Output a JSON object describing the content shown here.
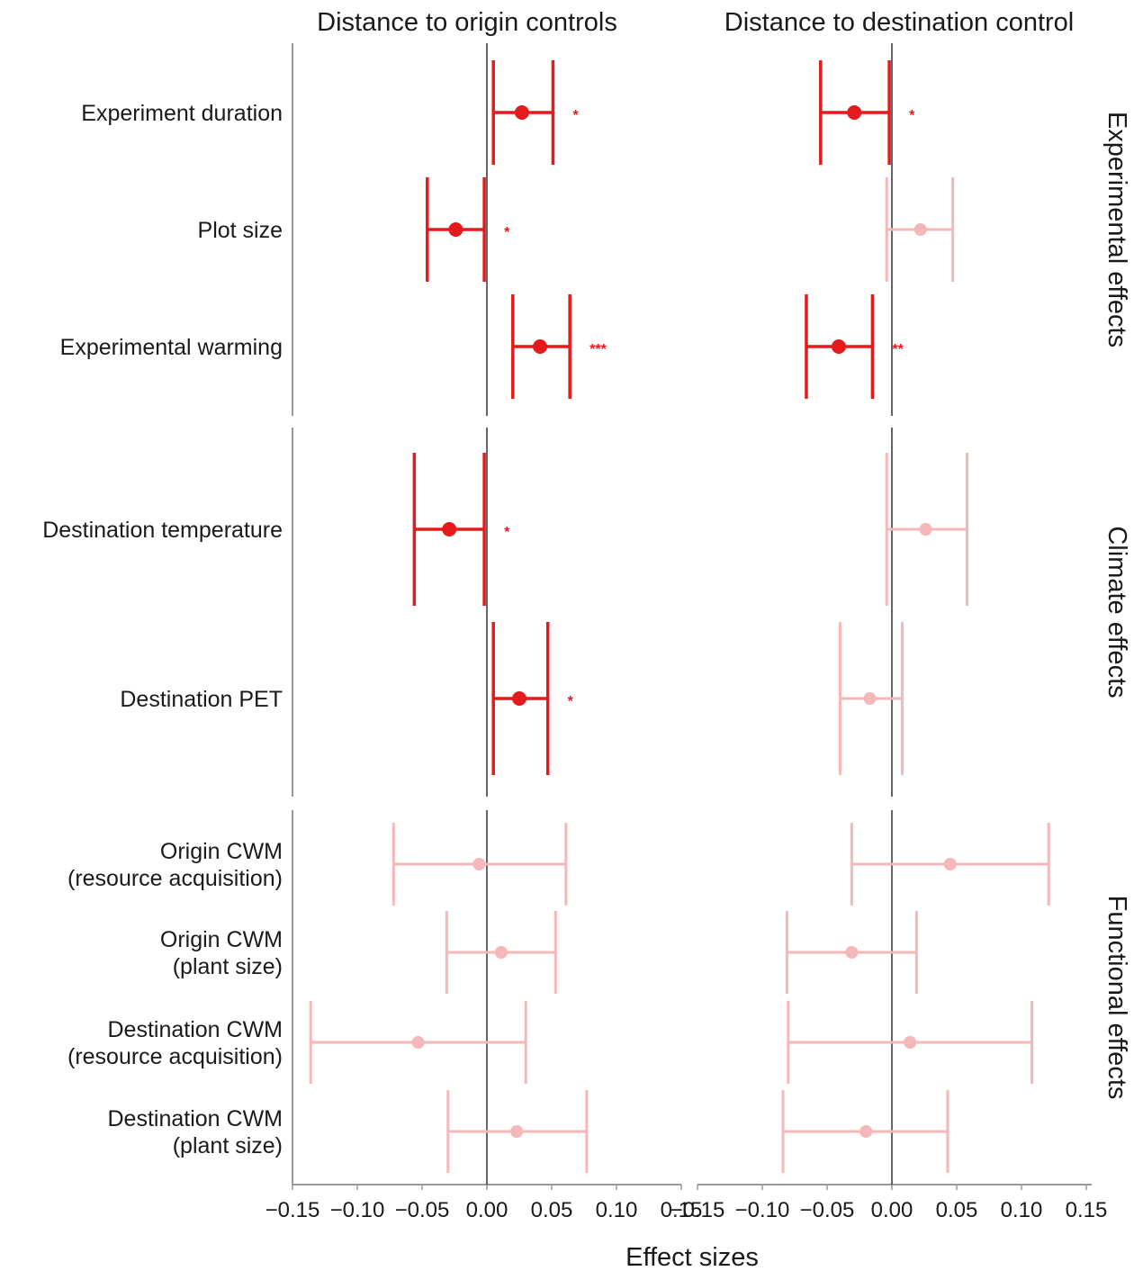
{
  "chart_data": {
    "type": "forest",
    "panels": [
      "Distance to origin controls",
      "Distance to destination control"
    ],
    "xlabel": "Effect sizes",
    "xlim": [
      -0.15,
      0.15
    ],
    "xticks": [
      -0.15,
      -0.1,
      -0.05,
      0.0,
      0.05,
      0.1,
      0.15
    ],
    "xtick_labels": [
      "−0.15",
      "−0.10",
      "−0.05",
      "0.00",
      "0.05",
      "0.10",
      "0.15"
    ],
    "colors": {
      "significant": "#e41a1c",
      "nonsignificant": "#f5b7b7",
      "zero_line": "#333333",
      "axis": "#999999"
    },
    "groups": [
      {
        "label": "Experimental effects",
        "rows": [
          {
            "label": [
              "Experiment duration"
            ],
            "origin": {
              "est": 0.027,
              "lo": 0.005,
              "hi": 0.051,
              "sig": "*"
            },
            "destination": {
              "est": -0.029,
              "lo": -0.055,
              "hi": -0.002,
              "sig": "*"
            }
          },
          {
            "label": [
              "Plot size"
            ],
            "origin": {
              "est": -0.024,
              "lo": -0.046,
              "hi": -0.002,
              "sig": "*"
            },
            "destination": {
              "est": 0.022,
              "lo": -0.004,
              "hi": 0.047,
              "sig": ""
            }
          },
          {
            "label": [
              "Experimental warming"
            ],
            "origin": {
              "est": 0.041,
              "lo": 0.02,
              "hi": 0.064,
              "sig": "***"
            },
            "destination": {
              "est": -0.041,
              "lo": -0.066,
              "hi": -0.015,
              "sig": "**"
            }
          }
        ]
      },
      {
        "label": "Climate effects",
        "rows": [
          {
            "label": [
              "Destination temperature"
            ],
            "origin": {
              "est": -0.029,
              "lo": -0.056,
              "hi": -0.002,
              "sig": "*"
            },
            "destination": {
              "est": 0.026,
              "lo": -0.004,
              "hi": 0.058,
              "sig": ""
            }
          },
          {
            "label": [
              "Destination PET"
            ],
            "origin": {
              "est": 0.025,
              "lo": 0.005,
              "hi": 0.047,
              "sig": "*"
            },
            "destination": {
              "est": -0.017,
              "lo": -0.04,
              "hi": 0.008,
              "sig": ""
            }
          }
        ]
      },
      {
        "label": "Functional effects",
        "rows": [
          {
            "label": [
              "Origin CWM",
              "(resource acquisition)"
            ],
            "origin": {
              "est": -0.006,
              "lo": -0.072,
              "hi": 0.061,
              "sig": ""
            },
            "destination": {
              "est": 0.045,
              "lo": -0.031,
              "hi": 0.121,
              "sig": ""
            }
          },
          {
            "label": [
              "Origin CWM",
              "(plant size)"
            ],
            "origin": {
              "est": 0.011,
              "lo": -0.031,
              "hi": 0.053,
              "sig": ""
            },
            "destination": {
              "est": -0.031,
              "lo": -0.081,
              "hi": 0.019,
              "sig": ""
            }
          },
          {
            "label": [
              "Destination CWM",
              "(resource acquisition)"
            ],
            "origin": {
              "est": -0.053,
              "lo": -0.136,
              "hi": 0.03,
              "sig": ""
            },
            "destination": {
              "est": 0.014,
              "lo": -0.08,
              "hi": 0.108,
              "sig": ""
            }
          },
          {
            "label": [
              "Destination CWM",
              "(plant size)"
            ],
            "origin": {
              "est": 0.023,
              "lo": -0.03,
              "hi": 0.077,
              "sig": ""
            },
            "destination": {
              "est": -0.02,
              "lo": -0.084,
              "hi": 0.043,
              "sig": ""
            }
          }
        ]
      }
    ]
  }
}
